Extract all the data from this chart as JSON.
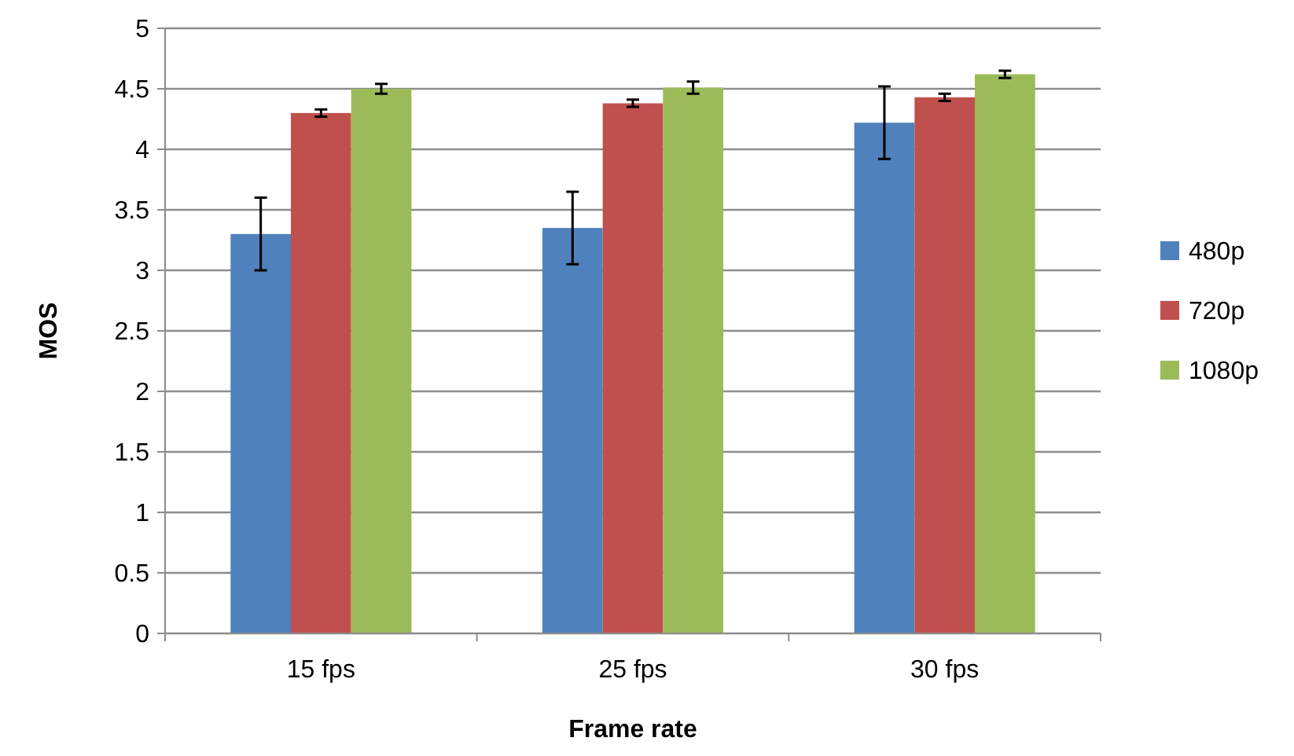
{
  "chart_data": {
    "type": "bar",
    "xlabel": "Frame rate",
    "ylabel": "MOS",
    "categories": [
      "15 fps",
      "25 fps",
      "30 fps"
    ],
    "series": [
      {
        "name": "480p",
        "color": "#4f81bd",
        "values": [
          3.3,
          3.35,
          4.22
        ],
        "errors": [
          0.3,
          0.3,
          0.3
        ]
      },
      {
        "name": "720p",
        "color": "#c0504d",
        "values": [
          4.3,
          4.38,
          4.43
        ],
        "errors": [
          0.03,
          0.03,
          0.03
        ]
      },
      {
        "name": "1080p",
        "color": "#9bbb59",
        "values": [
          4.5,
          4.51,
          4.62
        ],
        "errors": [
          0.04,
          0.05,
          0.03
        ]
      }
    ],
    "ylim": [
      0,
      5
    ],
    "yticks": [
      0,
      0.5,
      1,
      1.5,
      2,
      2.5,
      3,
      3.5,
      4,
      4.5,
      5
    ],
    "grid": "y",
    "legend": "right"
  }
}
